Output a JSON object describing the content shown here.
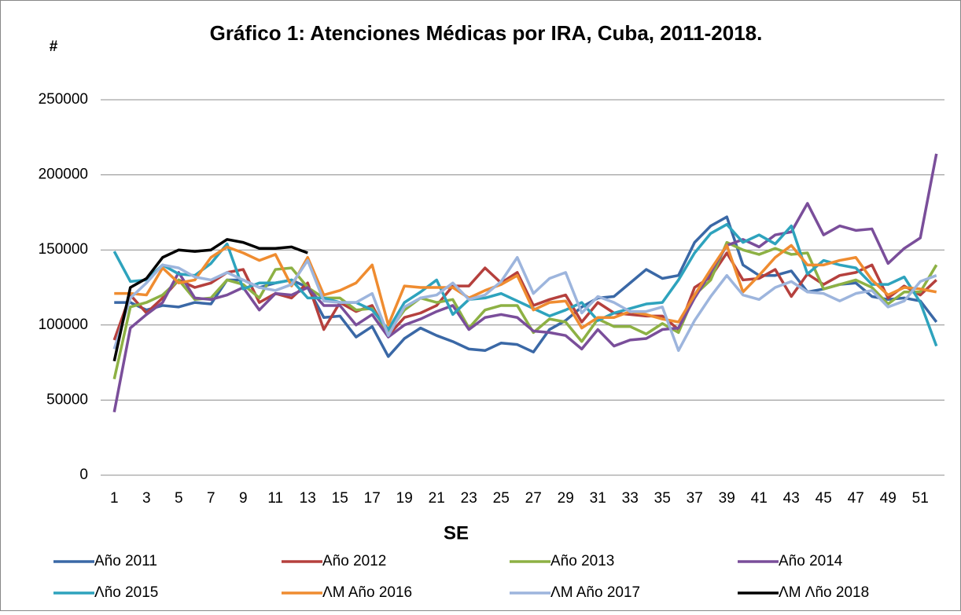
{
  "chart_data": {
    "type": "line",
    "title": "Gráfico  1: Atenciones Médicas por IRA, Cuba, 2011-2018.",
    "y_label": "#",
    "x_label": "SE",
    "categories": [
      1,
      null,
      3,
      null,
      5,
      null,
      7,
      null,
      9,
      null,
      11,
      null,
      13,
      null,
      15,
      null,
      17,
      null,
      19,
      null,
      21,
      null,
      23,
      null,
      25,
      null,
      27,
      null,
      29,
      null,
      31,
      null,
      33,
      null,
      35,
      null,
      37,
      null,
      39,
      null,
      41,
      null,
      43,
      null,
      45,
      null,
      47,
      null,
      49,
      null,
      51,
      null
    ],
    "ylim": [
      0,
      250000
    ],
    "yticks": [
      0,
      50000,
      100000,
      150000,
      200000,
      250000
    ],
    "grid": true,
    "series": [
      {
        "name": "Año 2011",
        "color": "#3a68a6",
        "values": [
          115000,
          115000,
          110000,
          113000,
          112000,
          115000,
          114000,
          130000,
          130000,
          125000,
          128000,
          130000,
          125000,
          105000,
          106000,
          92000,
          99000,
          79000,
          91000,
          98000,
          93000,
          89000,
          84000,
          83000,
          88000,
          87000,
          82000,
          97000,
          103000,
          112000,
          118000,
          119000,
          128000,
          137000,
          131000,
          133000,
          155000,
          166000,
          172000,
          140000,
          133000,
          133000,
          136000,
          122000,
          124000,
          127000,
          128000,
          119000,
          117000,
          118000,
          116000,
          102000
        ]
      },
      {
        "name": "Año 2012",
        "color": "#b5403d",
        "values": [
          90000,
          120000,
          108000,
          118000,
          130000,
          125000,
          128000,
          135000,
          137000,
          115000,
          121000,
          118000,
          128000,
          97000,
          115000,
          109000,
          113000,
          93000,
          105000,
          108000,
          113000,
          126000,
          126000,
          138000,
          128000,
          135000,
          113000,
          117000,
          120000,
          102000,
          115000,
          108000,
          107000,
          106000,
          106000,
          97000,
          125000,
          132000,
          148000,
          130000,
          131000,
          137000,
          119000,
          134000,
          127000,
          133000,
          135000,
          140000,
          118000,
          126000,
          120000,
          130000
        ]
      },
      {
        "name": "Año 2013",
        "color": "#8db144",
        "values": [
          64000,
          112000,
          115000,
          120000,
          130000,
          117000,
          118000,
          130000,
          127000,
          118000,
          137000,
          138000,
          125000,
          118000,
          118000,
          110000,
          111000,
          95000,
          110000,
          118000,
          115000,
          117000,
          98000,
          110000,
          113000,
          113000,
          95000,
          104000,
          102000,
          89000,
          104000,
          99000,
          99000,
          94000,
          101000,
          95000,
          120000,
          130000,
          155000,
          150000,
          147000,
          151000,
          147000,
          148000,
          124000,
          127000,
          130000,
          125000,
          114000,
          122000,
          122000,
          140000
        ]
      },
      {
        "name": "Año 2014",
        "color": "#7a4e9a",
        "values": [
          42000,
          98000,
          107000,
          115000,
          135000,
          118000,
          117000,
          120000,
          125000,
          110000,
          121000,
          120000,
          125000,
          113000,
          113000,
          100000,
          107000,
          92000,
          100000,
          104000,
          109000,
          113000,
          97000,
          105000,
          107000,
          105000,
          96000,
          95000,
          93000,
          84000,
          97000,
          86000,
          90000,
          91000,
          97000,
          98000,
          118000,
          135000,
          153000,
          157000,
          152000,
          160000,
          162000,
          181000,
          160000,
          166000,
          163000,
          164000,
          141000,
          151000,
          158000,
          214000
        ]
      },
      {
        "name": "Λño 2015",
        "color": "#2ea3bd",
        "values": [
          149000,
          129000,
          130000,
          140000,
          134000,
          133000,
          141000,
          154000,
          124000,
          128000,
          128000,
          130000,
          118000,
          118000,
          115000,
          115000,
          110000,
          97000,
          115000,
          122000,
          130000,
          107000,
          117000,
          118000,
          121000,
          116000,
          111000,
          106000,
          110000,
          115000,
          103000,
          108000,
          111000,
          114000,
          115000,
          130000,
          148000,
          161000,
          167000,
          155000,
          160000,
          154000,
          166000,
          134000,
          143000,
          140000,
          138000,
          127000,
          127000,
          132000,
          115000,
          86000
        ]
      },
      {
        "name": "ΛM Año 2016",
        "color": "#ef8c30",
        "values": [
          121000,
          121000,
          120000,
          138000,
          128000,
          130000,
          145000,
          152000,
          148000,
          143000,
          147000,
          126000,
          145000,
          120000,
          123000,
          128000,
          140000,
          100000,
          126000,
          125000,
          125000,
          125000,
          118000,
          123000,
          127000,
          133000,
          110000,
          115000,
          116000,
          98000,
          105000,
          105000,
          109000,
          107000,
          104000,
          102000,
          120000,
          137000,
          153000,
          122000,
          133000,
          145000,
          153000,
          140000,
          140000,
          143000,
          145000,
          130000,
          120000,
          125000,
          124000,
          122000
        ]
      },
      {
        "name": "ΛM Año 2017",
        "color": "#9db5dd",
        "values": [
          84000,
          118000,
          128000,
          140000,
          138000,
          132000,
          130000,
          135000,
          130000,
          125000,
          123000,
          127000,
          143000,
          116000,
          115000,
          115000,
          121000,
          93000,
          112000,
          118000,
          120000,
          128000,
          117000,
          120000,
          129000,
          145000,
          121000,
          131000,
          135000,
          108000,
          119000,
          115000,
          109000,
          109000,
          112000,
          83000,
          103000,
          119000,
          133000,
          120000,
          117000,
          125000,
          129000,
          122000,
          121000,
          116000,
          121000,
          123000,
          112000,
          116000,
          129000,
          133000
        ]
      },
      {
        "name": "ΛM Λño 2018",
        "color": "#000000",
        "values": [
          76000,
          125000,
          131000,
          145000,
          150000,
          149000,
          150000,
          157000,
          155000,
          151000,
          151000,
          152000,
          148000,
          null,
          null,
          null,
          null,
          null,
          null,
          null,
          null,
          null,
          null,
          null,
          null,
          null,
          null,
          null,
          null,
          null,
          null,
          null,
          null,
          null,
          null,
          null,
          null,
          null,
          null,
          null,
          null,
          null,
          null,
          null,
          null,
          null,
          null,
          null,
          null,
          null,
          null,
          null
        ]
      }
    ]
  }
}
